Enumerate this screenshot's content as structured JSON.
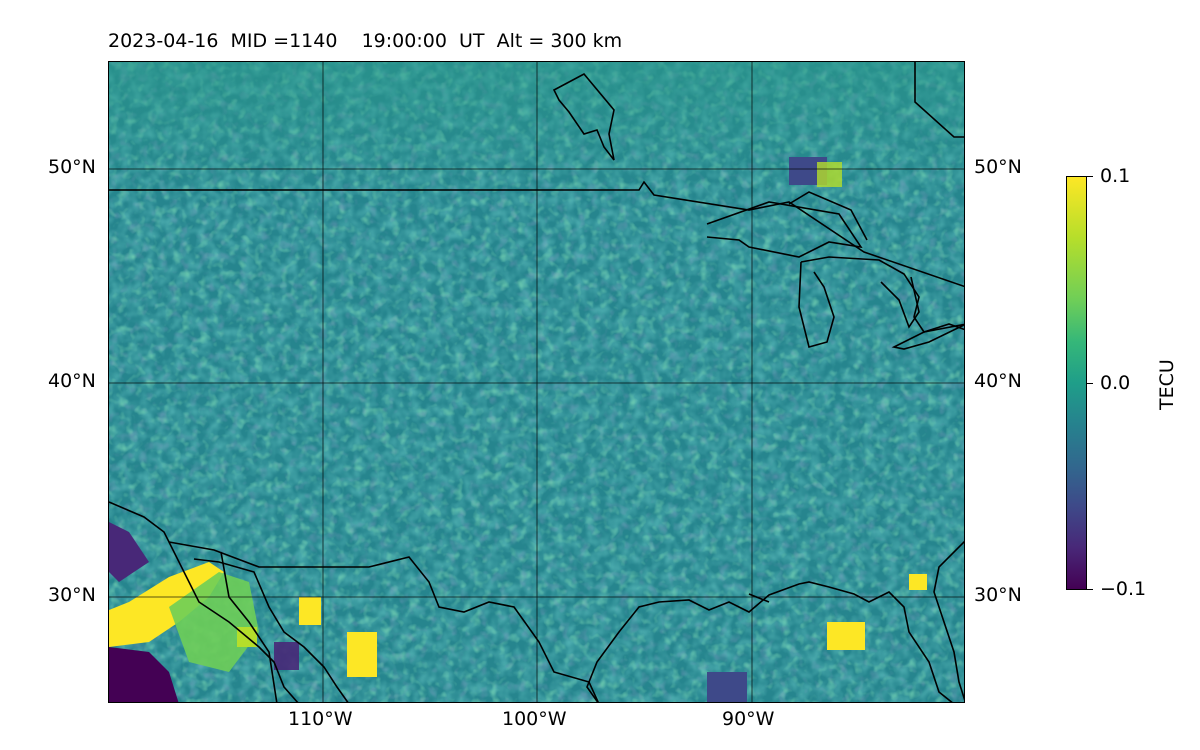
{
  "header": {
    "title": "2023-04-16  MID =1140    19:00:00  UT  Alt = 300 km"
  },
  "map": {
    "lat_labels_left": [
      "50°N",
      "40°N",
      "30°N"
    ],
    "lat_labels_right": [
      "50°N",
      "40°N",
      "30°N"
    ],
    "lon_labels": [
      "110°W",
      "100°W",
      "90°W"
    ],
    "lon_range": [
      -120,
      -80
    ],
    "lat_range": [
      25,
      55
    ],
    "colormap": "viridis",
    "value_range": [
      -0.1,
      0.1
    ]
  },
  "colorbar": {
    "label": "TECU",
    "ticks": [
      "0.1",
      "0.0",
      "−0.1"
    ],
    "colors": {
      "min": "#440154",
      "mid": "#21918c",
      "max": "#fde725"
    }
  }
}
